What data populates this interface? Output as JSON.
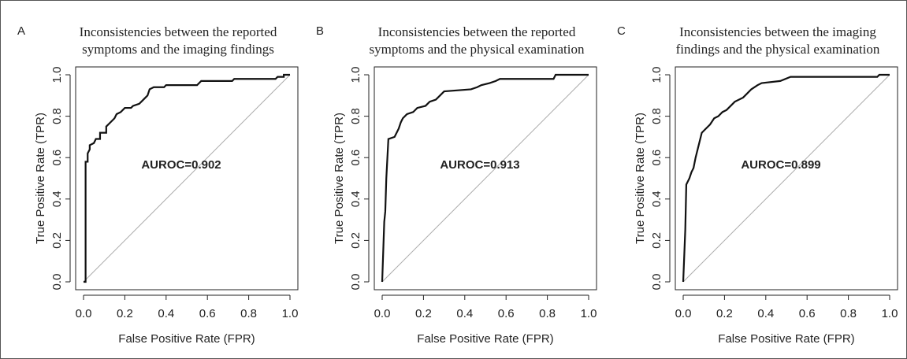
{
  "chart_data": [
    {
      "type": "line",
      "panel_label": "A",
      "title": [
        "Inconsistencies between the reported",
        "symptoms and the imaging findings"
      ],
      "annotation": "AUROC=0.902",
      "xlabel": "False Positive Rate (FPR)",
      "ylabel": "True Positive Rate (TPR)",
      "xlim": [
        0,
        1
      ],
      "ylim": [
        0,
        1
      ],
      "xticks": [
        {
          "value": 0,
          "label": "0.0"
        },
        0.2,
        0.4,
        0.6,
        0.8,
        {
          "value": 1,
          "label": "1.0"
        }
      ],
      "yticks": [
        {
          "value": 0,
          "label": "0.0"
        },
        0.2,
        0.4,
        0.6,
        0.8,
        {
          "value": 1,
          "label": "1.0"
        }
      ],
      "color": "#111111",
      "x": [
        0,
        0.01,
        0.01,
        0.02,
        0.02,
        0.03,
        0.03,
        0.05,
        0.06,
        0.08,
        0.08,
        0.11,
        0.11,
        0.13,
        0.15,
        0.16,
        0.18,
        0.2,
        0.23,
        0.24,
        0.27,
        0.29,
        0.31,
        0.32,
        0.34,
        0.39,
        0.4,
        0.55,
        0.57,
        0.72,
        0.73,
        0.93,
        0.94,
        0.97,
        0.97,
        1.0
      ],
      "values": [
        0,
        0,
        0.58,
        0.58,
        0.62,
        0.64,
        0.66,
        0.67,
        0.69,
        0.69,
        0.72,
        0.72,
        0.75,
        0.77,
        0.79,
        0.81,
        0.82,
        0.84,
        0.84,
        0.85,
        0.86,
        0.88,
        0.9,
        0.93,
        0.94,
        0.94,
        0.95,
        0.95,
        0.97,
        0.97,
        0.98,
        0.98,
        0.99,
        0.99,
        1.0,
        1.0
      ]
    },
    {
      "type": "line",
      "panel_label": "B",
      "title": [
        "Inconsistencies between the reported",
        "symptoms and the physical examination"
      ],
      "annotation": "AUROC=0.913",
      "xlabel": "False Positive Rate (FPR)",
      "ylabel": "True Positive Rate (TPR)",
      "xlim": [
        0,
        1
      ],
      "ylim": [
        0,
        1
      ],
      "xticks": [
        {
          "value": 0,
          "label": "0.0"
        },
        0.2,
        0.4,
        0.6,
        0.8,
        {
          "value": 1,
          "label": "1.0"
        }
      ],
      "yticks": [
        {
          "value": 0,
          "label": "0.0"
        },
        0.2,
        0.4,
        0.6,
        0.8,
        {
          "value": 1,
          "label": "1.0"
        }
      ],
      "color": "#111111",
      "x": [
        0,
        0.01,
        0.015,
        0.02,
        0.03,
        0.06,
        0.07,
        0.08,
        0.09,
        0.1,
        0.12,
        0.15,
        0.17,
        0.21,
        0.23,
        0.26,
        0.28,
        0.3,
        0.43,
        0.46,
        0.48,
        0.52,
        0.55,
        0.57,
        0.83,
        0.84,
        1.0
      ],
      "values": [
        0,
        0.29,
        0.34,
        0.5,
        0.69,
        0.7,
        0.72,
        0.74,
        0.77,
        0.79,
        0.81,
        0.82,
        0.84,
        0.85,
        0.87,
        0.88,
        0.9,
        0.92,
        0.93,
        0.94,
        0.95,
        0.96,
        0.97,
        0.98,
        0.98,
        1.0,
        1.0
      ]
    },
    {
      "type": "line",
      "panel_label": "C",
      "title": [
        "Inconsistencies between the imaging",
        "findings and the physical examination"
      ],
      "annotation": "AUROC=0.899",
      "xlabel": "False Positive Rate (FPR)",
      "ylabel": "True Positive Rate (TPR)",
      "xlim": [
        0,
        1
      ],
      "ylim": [
        0,
        1
      ],
      "xticks": [
        {
          "value": 0,
          "label": "0.0"
        },
        0.2,
        0.4,
        0.6,
        0.8,
        {
          "value": 1,
          "label": "1.0"
        }
      ],
      "yticks": [
        {
          "value": 0,
          "label": "0.0"
        },
        0.2,
        0.4,
        0.6,
        0.8,
        {
          "value": 1,
          "label": "1.0"
        }
      ],
      "color": "#111111",
      "x": [
        0,
        0.01,
        0.015,
        0.03,
        0.04,
        0.05,
        0.06,
        0.07,
        0.08,
        0.09,
        0.11,
        0.13,
        0.15,
        0.17,
        0.19,
        0.21,
        0.23,
        0.25,
        0.29,
        0.31,
        0.33,
        0.36,
        0.38,
        0.47,
        0.52,
        0.94,
        0.95,
        1.0
      ],
      "values": [
        0,
        0.25,
        0.47,
        0.5,
        0.53,
        0.55,
        0.6,
        0.64,
        0.68,
        0.72,
        0.74,
        0.76,
        0.79,
        0.8,
        0.82,
        0.83,
        0.85,
        0.87,
        0.89,
        0.91,
        0.93,
        0.95,
        0.96,
        0.97,
        0.99,
        0.99,
        1.0,
        1.0
      ]
    }
  ]
}
